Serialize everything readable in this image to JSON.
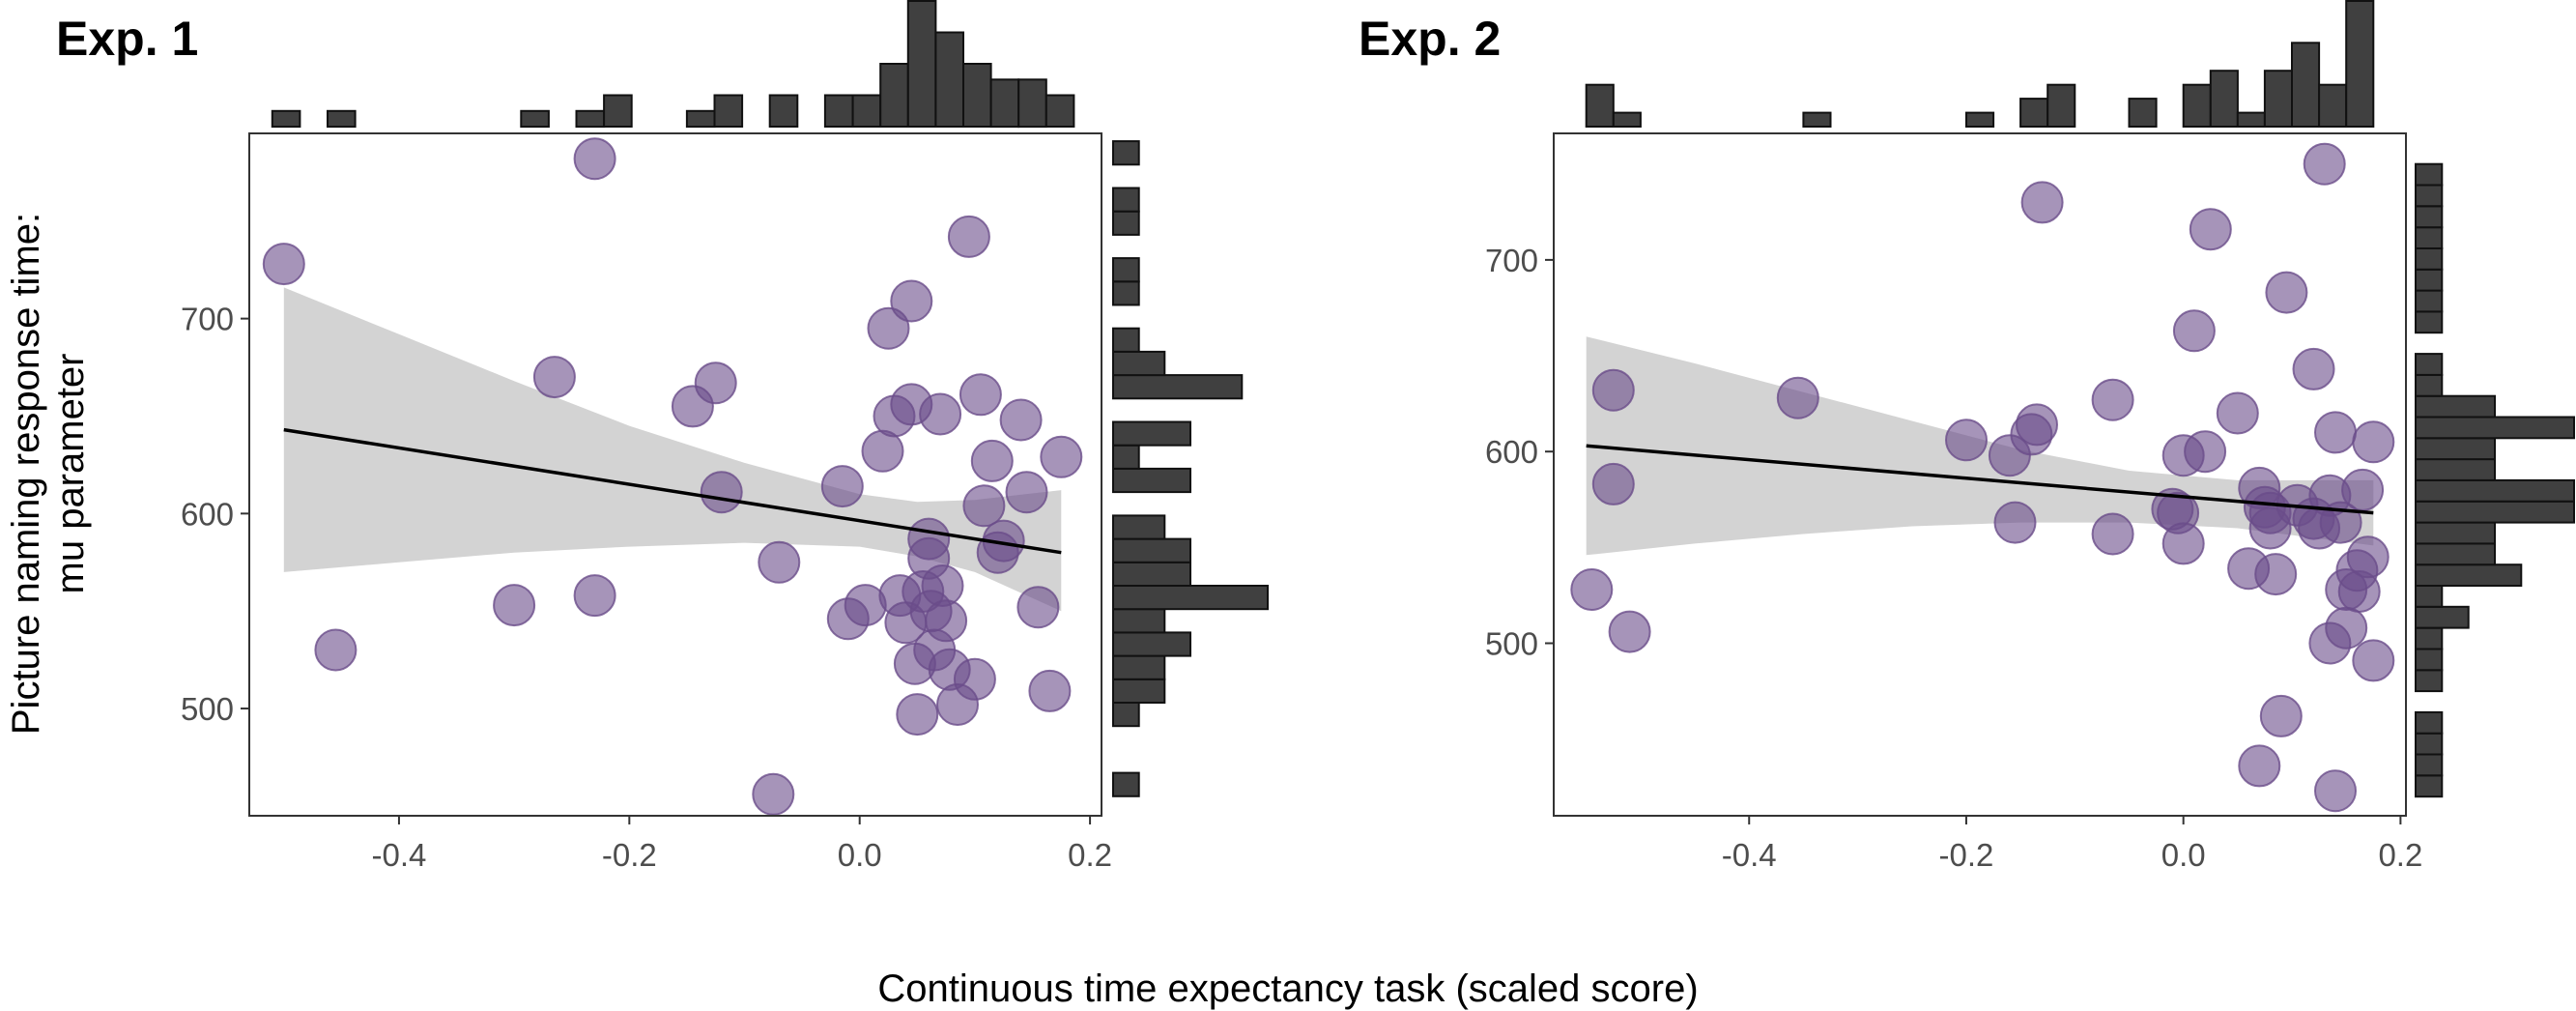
{
  "figure": {
    "y_axis_title_line1": "Picture naming response time:",
    "y_axis_title_line2": "mu parameter",
    "x_axis_title": "Continuous time expectancy task (scaled score)"
  },
  "colors": {
    "point_fill": "#6a4c8a",
    "point_opacity": 0.6,
    "band_fill": "#d3d3d3",
    "fit_line": "#000000",
    "histogram_bar": "#404040",
    "frame": "#333333",
    "tick_label": "#4d4d4d"
  },
  "chart_data": [
    {
      "type": "scatter",
      "title": "Exp. 1",
      "xlabel": "Continuous time expectancy task (scaled score)",
      "ylabel": "Picture naming response time: mu parameter",
      "xlim": [
        -0.53,
        0.21
      ],
      "ylim": [
        445,
        795
      ],
      "x_ticks": [
        -0.4,
        -0.2,
        0.0,
        0.2
      ],
      "x_tick_labels": [
        "-0.4",
        "-0.2",
        "0.0",
        "0.2"
      ],
      "y_ticks": [
        500,
        600,
        700
      ],
      "y_tick_labels": [
        "500",
        "600",
        "700"
      ],
      "grid": false,
      "points": [
        {
          "x": -0.5,
          "y": 728
        },
        {
          "x": -0.455,
          "y": 530
        },
        {
          "x": -0.3,
          "y": 553
        },
        {
          "x": -0.265,
          "y": 670
        },
        {
          "x": -0.23,
          "y": 782
        },
        {
          "x": -0.23,
          "y": 558
        },
        {
          "x": -0.145,
          "y": 655
        },
        {
          "x": -0.125,
          "y": 667
        },
        {
          "x": -0.12,
          "y": 611
        },
        {
          "x": -0.07,
          "y": 575
        },
        {
          "x": -0.075,
          "y": 456
        },
        {
          "x": -0.015,
          "y": 614
        },
        {
          "x": -0.01,
          "y": 546
        },
        {
          "x": 0.005,
          "y": 553
        },
        {
          "x": 0.02,
          "y": 632
        },
        {
          "x": 0.025,
          "y": 695
        },
        {
          "x": 0.03,
          "y": 650
        },
        {
          "x": 0.035,
          "y": 558
        },
        {
          "x": 0.04,
          "y": 544
        },
        {
          "x": 0.045,
          "y": 709
        },
        {
          "x": 0.045,
          "y": 656
        },
        {
          "x": 0.048,
          "y": 523
        },
        {
          "x": 0.05,
          "y": 497
        },
        {
          "x": 0.055,
          "y": 560
        },
        {
          "x": 0.06,
          "y": 587
        },
        {
          "x": 0.06,
          "y": 577
        },
        {
          "x": 0.062,
          "y": 550
        },
        {
          "x": 0.065,
          "y": 530
        },
        {
          "x": 0.07,
          "y": 651
        },
        {
          "x": 0.072,
          "y": 563
        },
        {
          "x": 0.075,
          "y": 545
        },
        {
          "x": 0.078,
          "y": 520
        },
        {
          "x": 0.085,
          "y": 502
        },
        {
          "x": 0.095,
          "y": 742
        },
        {
          "x": 0.1,
          "y": 515
        },
        {
          "x": 0.105,
          "y": 661
        },
        {
          "x": 0.108,
          "y": 604
        },
        {
          "x": 0.115,
          "y": 627
        },
        {
          "x": 0.12,
          "y": 580
        },
        {
          "x": 0.125,
          "y": 586
        },
        {
          "x": 0.14,
          "y": 648
        },
        {
          "x": 0.145,
          "y": 611
        },
        {
          "x": 0.155,
          "y": 552
        },
        {
          "x": 0.165,
          "y": 509
        },
        {
          "x": 0.175,
          "y": 629
        }
      ],
      "fit": {
        "x_start": -0.5,
        "y_start": 643,
        "x_end": 0.175,
        "y_end": 580
      },
      "confidence_band": {
        "x": [
          -0.5,
          -0.4,
          -0.3,
          -0.2,
          -0.1,
          0.0,
          0.05,
          0.1,
          0.175
        ],
        "lower": [
          570,
          575,
          580,
          583,
          585,
          583,
          578,
          570,
          550
        ],
        "upper": [
          716,
          692,
          668,
          645,
          626,
          610,
          606,
          607,
          612
        ]
      },
      "x_histogram": {
        "bin_starts": [
          -0.51,
          -0.486,
          -0.462,
          -0.438,
          -0.414,
          -0.39,
          -0.366,
          -0.342,
          -0.318,
          -0.294,
          -0.27,
          -0.246,
          -0.222,
          -0.198,
          -0.174,
          -0.15,
          -0.126,
          -0.102,
          -0.078,
          -0.054,
          -0.03,
          -0.006,
          0.018,
          0.042,
          0.066,
          0.09,
          0.114,
          0.138,
          0.162
        ],
        "bin_width": 0.024,
        "counts": [
          1,
          0,
          1,
          0,
          0,
          0,
          0,
          0,
          0,
          1,
          0,
          1,
          2,
          0,
          0,
          1,
          2,
          0,
          2,
          0,
          2,
          2,
          4,
          8,
          6,
          4,
          3,
          3,
          2
        ]
      },
      "y_histogram": {
        "bin_starts": [
          455,
          467,
          479,
          491,
          503,
          515,
          527,
          539,
          551,
          563,
          575,
          587,
          599,
          611,
          623,
          635,
          647,
          659,
          671,
          683,
          695,
          707,
          719,
          731,
          743,
          755,
          767,
          779
        ],
        "bin_width": 12,
        "counts": [
          1,
          0,
          0,
          1,
          2,
          2,
          3,
          2,
          6,
          3,
          3,
          2,
          0,
          3,
          1,
          3,
          0,
          5,
          2,
          1,
          0,
          1,
          1,
          0,
          1,
          1,
          0,
          1
        ]
      }
    },
    {
      "type": "scatter",
      "title": "Exp. 2",
      "xlabel": "Continuous time expectancy task (scaled score)",
      "ylabel": "Picture naming response time: mu parameter",
      "xlim": [
        -0.58,
        0.205
      ],
      "ylim": [
        410,
        766
      ],
      "x_ticks": [
        -0.4,
        -0.2,
        0.0,
        0.2
      ],
      "x_tick_labels": [
        "-0.4",
        "-0.2",
        "0.0",
        "0.2"
      ],
      "y_ticks": [
        500,
        600,
        700
      ],
      "y_tick_labels": [
        "500",
        "600",
        "700"
      ],
      "grid": false,
      "points": [
        {
          "x": -0.545,
          "y": 528
        },
        {
          "x": -0.525,
          "y": 632
        },
        {
          "x": -0.525,
          "y": 583
        },
        {
          "x": -0.51,
          "y": 506
        },
        {
          "x": -0.355,
          "y": 628
        },
        {
          "x": -0.2,
          "y": 606
        },
        {
          "x": -0.16,
          "y": 598
        },
        {
          "x": -0.155,
          "y": 563
        },
        {
          "x": -0.14,
          "y": 609
        },
        {
          "x": -0.135,
          "y": 614
        },
        {
          "x": -0.13,
          "y": 730
        },
        {
          "x": -0.065,
          "y": 627
        },
        {
          "x": -0.065,
          "y": 557
        },
        {
          "x": -0.01,
          "y": 570
        },
        {
          "x": -0.005,
          "y": 568
        },
        {
          "x": 0.0,
          "y": 598
        },
        {
          "x": 0.0,
          "y": 552
        },
        {
          "x": 0.01,
          "y": 663
        },
        {
          "x": 0.02,
          "y": 600
        },
        {
          "x": 0.025,
          "y": 716
        },
        {
          "x": 0.05,
          "y": 620
        },
        {
          "x": 0.06,
          "y": 539
        },
        {
          "x": 0.07,
          "y": 581
        },
        {
          "x": 0.07,
          "y": 436
        },
        {
          "x": 0.075,
          "y": 571
        },
        {
          "x": 0.08,
          "y": 568
        },
        {
          "x": 0.08,
          "y": 560
        },
        {
          "x": 0.085,
          "y": 536
        },
        {
          "x": 0.09,
          "y": 462
        },
        {
          "x": 0.095,
          "y": 683
        },
        {
          "x": 0.105,
          "y": 572
        },
        {
          "x": 0.12,
          "y": 643
        },
        {
          "x": 0.12,
          "y": 565
        },
        {
          "x": 0.125,
          "y": 560
        },
        {
          "x": 0.13,
          "y": 750
        },
        {
          "x": 0.135,
          "y": 577
        },
        {
          "x": 0.135,
          "y": 500
        },
        {
          "x": 0.14,
          "y": 610
        },
        {
          "x": 0.14,
          "y": 423
        },
        {
          "x": 0.145,
          "y": 563
        },
        {
          "x": 0.15,
          "y": 528
        },
        {
          "x": 0.15,
          "y": 508
        },
        {
          "x": 0.16,
          "y": 538
        },
        {
          "x": 0.162,
          "y": 527
        },
        {
          "x": 0.165,
          "y": 580
        },
        {
          "x": 0.17,
          "y": 545
        },
        {
          "x": 0.175,
          "y": 605
        },
        {
          "x": 0.175,
          "y": 491
        }
      ],
      "fit": {
        "x_start": -0.55,
        "y_start": 603,
        "x_end": 0.175,
        "y_end": 568
      },
      "confidence_band": {
        "x": [
          -0.55,
          -0.45,
          -0.35,
          -0.25,
          -0.15,
          -0.05,
          0.05,
          0.175
        ],
        "lower": [
          546,
          552,
          557,
          561,
          563,
          563,
          560,
          551
        ],
        "upper": [
          660,
          646,
          631,
          616,
          601,
          590,
          585,
          585
        ]
      },
      "x_histogram": {
        "bin_starts": [
          -0.55,
          -0.525,
          -0.5,
          -0.475,
          -0.45,
          -0.425,
          -0.4,
          -0.375,
          -0.35,
          -0.325,
          -0.3,
          -0.275,
          -0.25,
          -0.225,
          -0.2,
          -0.175,
          -0.15,
          -0.125,
          -0.1,
          -0.075,
          -0.05,
          -0.025,
          0.0,
          0.025,
          0.05,
          0.075,
          0.1,
          0.125,
          0.15
        ],
        "bin_width": 0.025,
        "counts": [
          3,
          1,
          0,
          0,
          0,
          0,
          0,
          0,
          1,
          0,
          0,
          0,
          0,
          0,
          1,
          0,
          2,
          3,
          0,
          0,
          2,
          0,
          3,
          4,
          1,
          4,
          6,
          3,
          9
        ]
      },
      "y_histogram": {
        "bin_starts": [
          420,
          431,
          442,
          453,
          464,
          475,
          486,
          497,
          508,
          519,
          530,
          541,
          552,
          563,
          574,
          585,
          596,
          607,
          618,
          629,
          640,
          651,
          662,
          673,
          684,
          695,
          706,
          717,
          728,
          739
        ],
        "bin_width": 11,
        "counts": [
          1,
          1,
          1,
          1,
          0,
          1,
          1,
          1,
          2,
          1,
          4,
          3,
          3,
          6,
          6,
          3,
          3,
          6,
          3,
          1,
          1,
          0,
          1,
          1,
          1,
          1,
          1,
          1,
          1,
          1
        ]
      }
    }
  ]
}
